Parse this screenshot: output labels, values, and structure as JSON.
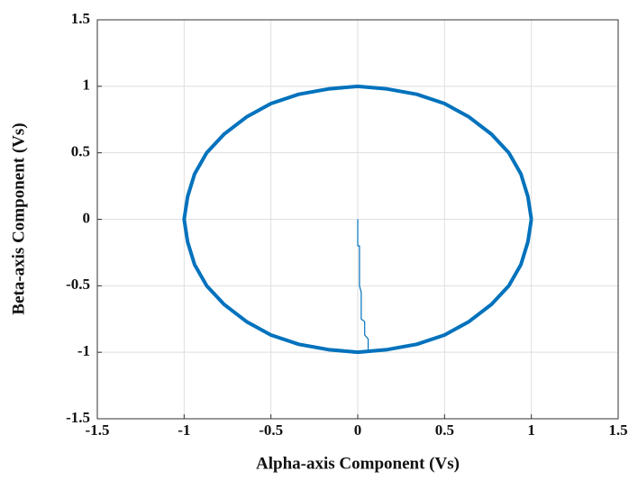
{
  "chart_data": {
    "type": "line",
    "xlabel": "Alpha-axis Component (Vs)",
    "ylabel": "Beta-axis Component (Vs)",
    "xlim": [
      -1.5,
      1.5
    ],
    "ylim": [
      -1.5,
      1.5
    ],
    "xticks": [
      -1.5,
      -1,
      -0.5,
      0,
      0.5,
      1,
      1.5
    ],
    "yticks": [
      -1.5,
      -1,
      -0.5,
      0,
      0.5,
      1,
      1.5
    ],
    "grid": true,
    "series": [
      {
        "color": "#0072bd",
        "line_width": 1.2,
        "x": [
          0,
          0,
          0.01,
          0.01,
          0.02,
          0.02,
          0.04,
          0.04,
          0.06,
          0.06
        ],
        "values": [
          0,
          -0.2,
          -0.2,
          -0.5,
          -0.55,
          -0.75,
          -0.77,
          -0.87,
          -0.9,
          -0.98
        ]
      },
      {
        "color": "#0072bd",
        "line_width": 4,
        "x": [
          1,
          0.98,
          0.94,
          0.87,
          0.77,
          0.64,
          0.5,
          0.34,
          0.17,
          0,
          -0.17,
          -0.34,
          -0.5,
          -0.64,
          -0.77,
          -0.87,
          -0.94,
          -0.98,
          -1,
          -0.98,
          -0.94,
          -0.87,
          -0.77,
          -0.64,
          -0.5,
          -0.34,
          -0.17,
          0,
          0.17,
          0.34,
          0.5,
          0.64,
          0.77,
          0.87,
          0.94,
          0.98,
          1
        ],
        "values": [
          0,
          0.17,
          0.34,
          0.5,
          0.64,
          0.77,
          0.87,
          0.94,
          0.98,
          1,
          0.98,
          0.94,
          0.87,
          0.77,
          0.64,
          0.5,
          0.34,
          0.17,
          0,
          -0.17,
          -0.34,
          -0.5,
          -0.64,
          -0.77,
          -0.87,
          -0.94,
          -0.98,
          -1,
          -0.98,
          -0.94,
          -0.87,
          -0.77,
          -0.64,
          -0.5,
          -0.34,
          -0.17,
          0
        ]
      }
    ]
  }
}
